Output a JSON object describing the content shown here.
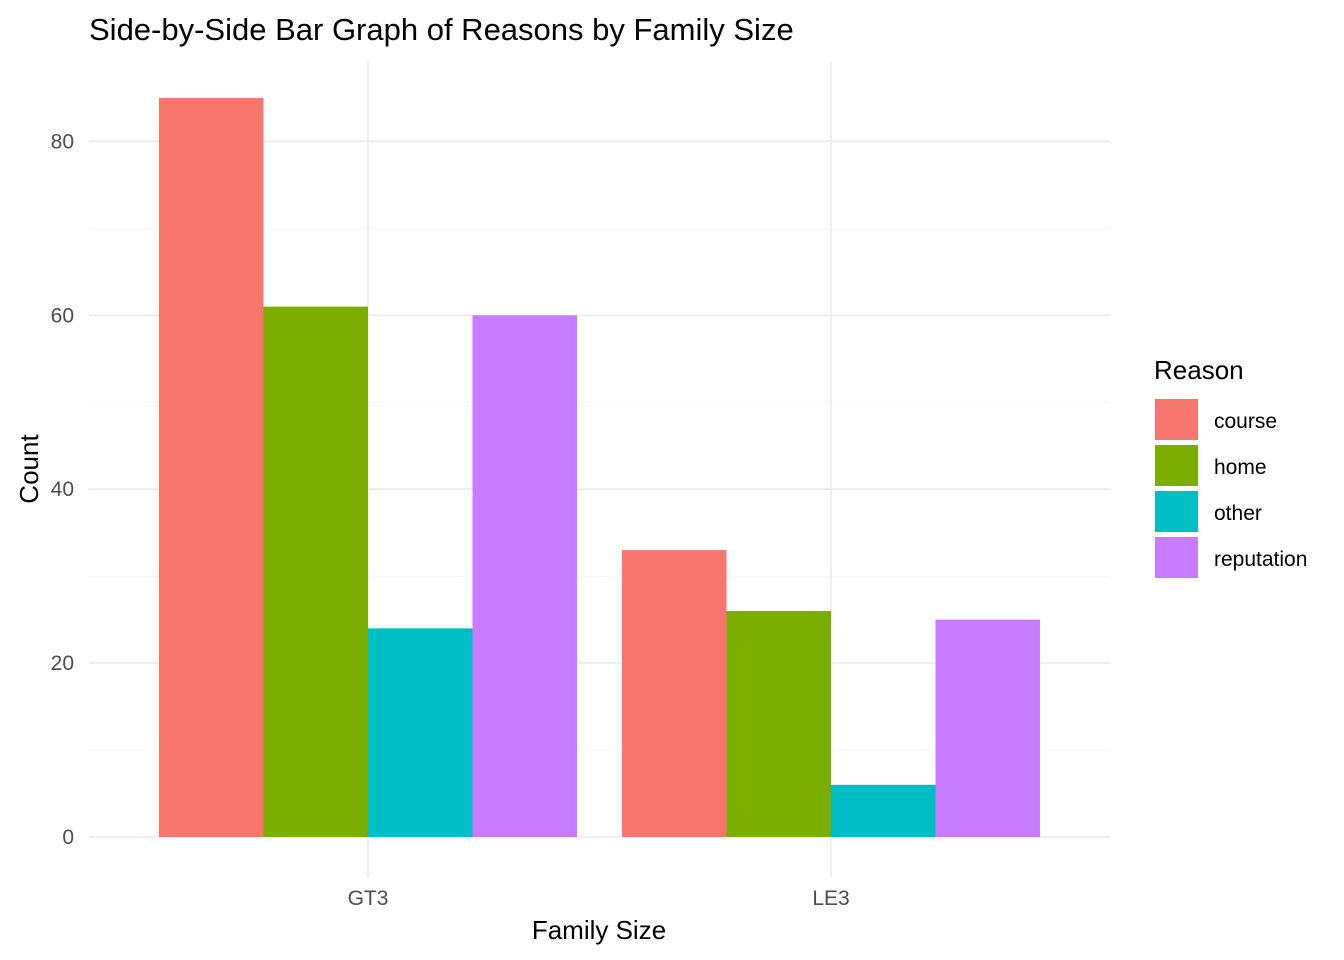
{
  "chart_data": {
    "type": "bar",
    "title": "Side-by-Side Bar Graph of Reasons by Family Size",
    "xlabel": "Family Size",
    "ylabel": "Count",
    "categories": [
      "GT3",
      "LE3"
    ],
    "series": [
      {
        "name": "course",
        "values": [
          85,
          33
        ],
        "color": "#F8766D"
      },
      {
        "name": "home",
        "values": [
          61,
          26
        ],
        "color": "#7CAE00"
      },
      {
        "name": "other",
        "values": [
          24,
          6
        ],
        "color": "#00BFC4"
      },
      {
        "name": "reputation",
        "values": [
          60,
          25
        ],
        "color": "#C77CFF"
      }
    ],
    "ylim": [
      0,
      89.25
    ],
    "yticks": [
      0,
      20,
      40,
      60,
      80
    ],
    "grid": true,
    "legend": {
      "title": "Reason",
      "position": "right"
    }
  }
}
